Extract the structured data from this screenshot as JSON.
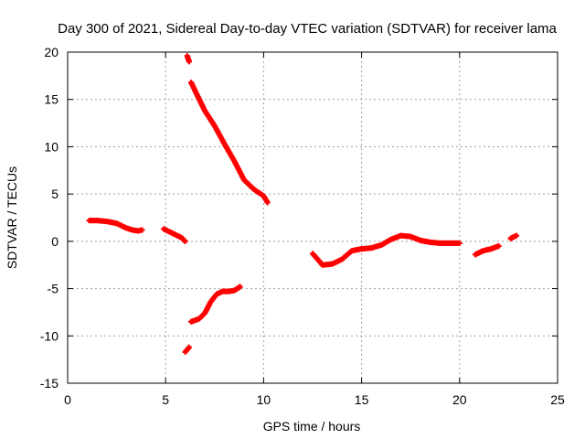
{
  "chart_data": {
    "type": "scatter",
    "title": "Day 300 of 2021, Sidereal Day-to-day VTEC variation (SDTVAR) for receiver lama",
    "xlabel": "GPS time / hours",
    "ylabel": "SDTVAR / TECUs",
    "xlim": [
      0,
      25
    ],
    "ylim": [
      -15,
      20
    ],
    "xticks": [
      0,
      5,
      10,
      15,
      20,
      25
    ],
    "yticks": [
      -15,
      -10,
      -5,
      0,
      5,
      10,
      15,
      20
    ],
    "xtick_labels": [
      "0",
      "5",
      "10",
      "15",
      "20",
      "25"
    ],
    "ytick_labels": [
      "-15",
      "-10",
      "-5",
      "0",
      "5",
      "10",
      "15",
      "20"
    ],
    "grid": true,
    "marker_color": "#ff0000",
    "series": [
      {
        "name": "seg1",
        "x": [
          1.1,
          1.5,
          2.0,
          2.5,
          3.0,
          3.3,
          3.6,
          3.8
        ],
        "y": [
          2.2,
          2.2,
          2.1,
          1.9,
          1.4,
          1.2,
          1.1,
          1.2
        ]
      },
      {
        "name": "seg2",
        "x": [
          4.9,
          5.2,
          5.5,
          5.8,
          6.0
        ],
        "y": [
          1.3,
          1.0,
          0.7,
          0.4,
          0.0
        ]
      },
      {
        "name": "seg3",
        "x": [
          6.0,
          6.2
        ],
        "y": [
          -11.7,
          -11.2
        ]
      },
      {
        "name": "seg4",
        "x": [
          6.1,
          6.2
        ],
        "y": [
          19.6,
          19.0
        ]
      },
      {
        "name": "seg5",
        "x": [
          6.3,
          6.6,
          7.0,
          7.5,
          8.0,
          8.5,
          9.0,
          9.5,
          10.0,
          10.2
        ],
        "y": [
          16.8,
          15.5,
          13.8,
          12.2,
          10.3,
          8.5,
          6.5,
          5.5,
          4.8,
          4.1
        ]
      },
      {
        "name": "seg6",
        "x": [
          6.3,
          6.7,
          7.0,
          7.3,
          7.6,
          7.9,
          8.2,
          8.5,
          8.8
        ],
        "y": [
          -8.5,
          -8.2,
          -7.6,
          -6.4,
          -5.6,
          -5.3,
          -5.3,
          -5.2,
          -4.8
        ]
      },
      {
        "name": "seg7",
        "x": [
          12.5,
          12.8,
          13.0,
          13.5,
          14.0,
          14.5,
          15.0,
          15.5,
          16.0,
          16.5,
          17.0,
          17.5,
          18.0,
          18.5,
          19.0,
          19.5,
          20.0
        ],
        "y": [
          -1.3,
          -2.0,
          -2.5,
          -2.4,
          -1.9,
          -1.0,
          -0.8,
          -0.7,
          -0.4,
          0.2,
          0.6,
          0.5,
          0.1,
          -0.1,
          -0.2,
          -0.2,
          -0.2
        ]
      },
      {
        "name": "seg8",
        "x": [
          20.8,
          21.2,
          21.6,
          22.0
        ],
        "y": [
          -1.4,
          -1.0,
          -0.8,
          -0.5
        ]
      },
      {
        "name": "seg9",
        "x": [
          22.6,
          22.9
        ],
        "y": [
          0.3,
          0.6
        ]
      }
    ]
  }
}
